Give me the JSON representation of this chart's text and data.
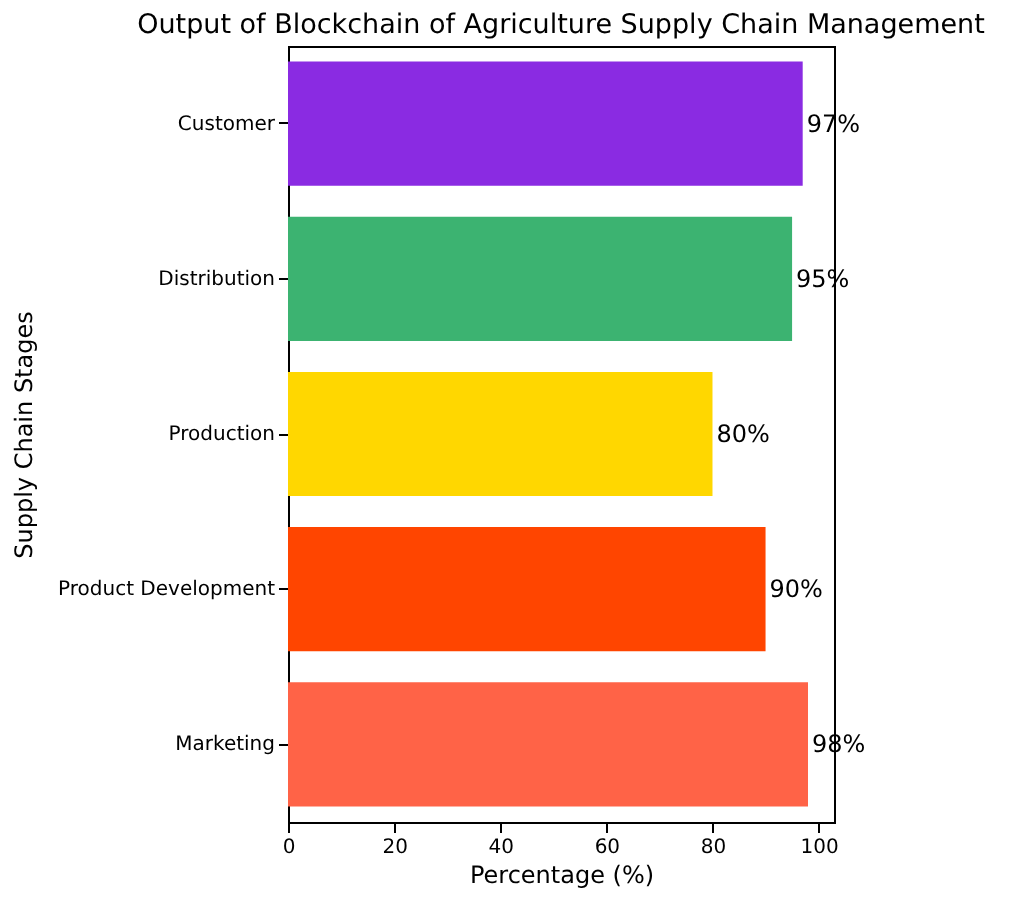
{
  "chart_data": {
    "type": "bar",
    "orientation": "horizontal",
    "title": "Output of Blockchain of Agriculture Supply Chain Management",
    "xlabel": "Percentage  (%)",
    "ylabel": "Supply Chain Stages",
    "categories": [
      "Customer",
      "Distribution",
      "Production",
      "Product Development",
      "Marketing"
    ],
    "values": [
      97,
      95,
      80,
      90,
      98
    ],
    "colors": [
      "#8a2be2",
      "#3cb371",
      "#ffd700",
      "#ff4500",
      "#ff6347"
    ],
    "value_labels": [
      "97%",
      "95%",
      "80%",
      "90%",
      "98%"
    ],
    "xlim": [
      0,
      102.9
    ],
    "xticks": [
      0,
      20,
      40,
      60,
      80,
      100
    ],
    "grid": false
  }
}
